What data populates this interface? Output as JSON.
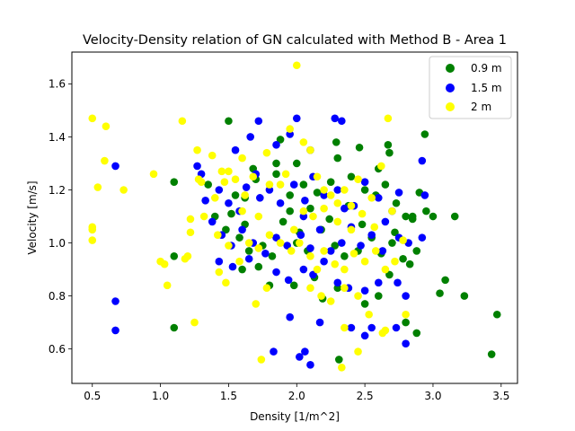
{
  "chart_data": {
    "type": "scatter",
    "title": "Velocity-Density relation of GN calculated with Method B - Area 1",
    "xlabel": "Density [1/m^2]",
    "ylabel": "Velocity [m/s]",
    "xlim": [
      0.35,
      3.62
    ],
    "ylim": [
      0.47,
      1.72
    ],
    "xticks": [
      "0.5",
      "1.0",
      "1.5",
      "2.0",
      "2.5",
      "3.0",
      "3.5"
    ],
    "yticks": [
      "0.6",
      "0.8",
      "1.0",
      "1.2",
      "1.4",
      "1.6"
    ],
    "grid": false,
    "legend_position": "top-right",
    "series": [
      {
        "name": "0.9 m",
        "color": "#008000",
        "points": [
          [
            1.5,
            1.46
          ],
          [
            1.88,
            1.39
          ],
          [
            2.29,
            1.38
          ],
          [
            2.67,
            1.37
          ],
          [
            2.94,
            1.41
          ],
          [
            2.68,
            1.34
          ],
          [
            1.1,
            1.23
          ],
          [
            1.35,
            1.22
          ],
          [
            1.55,
            1.18
          ],
          [
            1.62,
            1.17
          ],
          [
            1.7,
            1.24
          ],
          [
            1.85,
            1.26
          ],
          [
            1.95,
            1.18
          ],
          [
            2.05,
            1.22
          ],
          [
            2.15,
            1.19
          ],
          [
            2.25,
            1.23
          ],
          [
            2.4,
            1.25
          ],
          [
            2.5,
            1.2
          ],
          [
            2.58,
            1.18
          ],
          [
            2.65,
            1.22
          ],
          [
            2.73,
            1.15
          ],
          [
            2.8,
            1.1
          ],
          [
            2.85,
            1.09
          ],
          [
            2.9,
            1.19
          ],
          [
            2.95,
            1.12
          ],
          [
            3.0,
            1.1
          ],
          [
            3.16,
            1.1
          ],
          [
            1.4,
            1.1
          ],
          [
            1.48,
            1.05
          ],
          [
            1.58,
            1.02
          ],
          [
            1.65,
            0.97
          ],
          [
            1.75,
            0.99
          ],
          [
            1.82,
            0.95
          ],
          [
            1.9,
            1.08
          ],
          [
            2.0,
            1.0
          ],
          [
            2.08,
            0.97
          ],
          [
            2.18,
            1.05
          ],
          [
            2.28,
            0.99
          ],
          [
            2.35,
            0.95
          ],
          [
            2.45,
            0.97
          ],
          [
            2.55,
            1.02
          ],
          [
            2.62,
            0.96
          ],
          [
            2.7,
            1.0
          ],
          [
            2.78,
            0.94
          ],
          [
            2.83,
            0.92
          ],
          [
            2.88,
            0.97
          ],
          [
            1.1,
            0.95
          ],
          [
            1.6,
            0.9
          ],
          [
            1.72,
            0.91
          ],
          [
            1.8,
            0.84
          ],
          [
            1.98,
            0.84
          ],
          [
            2.13,
            0.87
          ],
          [
            2.19,
            0.79
          ],
          [
            2.3,
            0.83
          ],
          [
            2.5,
            0.77
          ],
          [
            2.6,
            0.8
          ],
          [
            2.68,
            0.88
          ],
          [
            2.8,
            0.7
          ],
          [
            2.88,
            0.66
          ],
          [
            3.05,
            0.81
          ],
          [
            3.09,
            0.86
          ],
          [
            3.23,
            0.8
          ],
          [
            3.47,
            0.73
          ],
          [
            3.43,
            0.58
          ],
          [
            1.1,
            0.68
          ],
          [
            2.31,
            0.56
          ],
          [
            1.85,
            1.3
          ],
          [
            2.3,
            1.32
          ],
          [
            2.46,
            1.36
          ],
          [
            2.6,
            1.28
          ],
          [
            1.68,
            1.28
          ],
          [
            2.0,
            1.3
          ],
          [
            2.1,
            1.13
          ],
          [
            2.38,
            1.14
          ],
          [
            2.72,
            1.04
          ],
          [
            1.52,
            1.11
          ],
          [
            1.95,
            1.12
          ],
          [
            2.24,
            1.09
          ],
          [
            2.48,
            1.07
          ],
          [
            2.85,
            1.1
          ],
          [
            1.62,
            1.07
          ],
          [
            2.02,
            1.04
          ]
        ]
      },
      {
        "name": "1.5 m",
        "color": "#0000ff",
        "points": [
          [
            0.67,
            1.29
          ],
          [
            1.27,
            1.29
          ],
          [
            1.72,
            1.46
          ],
          [
            1.66,
            1.4
          ],
          [
            1.85,
            1.37
          ],
          [
            1.95,
            1.41
          ],
          [
            2.0,
            1.47
          ],
          [
            2.28,
            1.47
          ],
          [
            2.33,
            1.46
          ],
          [
            2.1,
            1.35
          ],
          [
            2.92,
            1.31
          ],
          [
            1.55,
            1.35
          ],
          [
            1.33,
            1.16
          ],
          [
            1.43,
            1.2
          ],
          [
            1.5,
            1.15
          ],
          [
            1.58,
            1.12
          ],
          [
            1.63,
            1.21
          ],
          [
            1.73,
            1.17
          ],
          [
            1.8,
            1.2
          ],
          [
            1.88,
            1.15
          ],
          [
            1.98,
            1.22
          ],
          [
            2.06,
            1.16
          ],
          [
            2.12,
            1.25
          ],
          [
            2.2,
            1.18
          ],
          [
            2.3,
            1.2
          ],
          [
            2.42,
            1.14
          ],
          [
            2.5,
            1.23
          ],
          [
            2.6,
            1.17
          ],
          [
            2.7,
            1.12
          ],
          [
            2.75,
            1.19
          ],
          [
            2.94,
            1.18
          ],
          [
            1.38,
            1.08
          ],
          [
            1.45,
            1.03
          ],
          [
            1.52,
            0.99
          ],
          [
            1.6,
            1.05
          ],
          [
            1.68,
            1.0
          ],
          [
            1.77,
            0.96
          ],
          [
            1.85,
            1.02
          ],
          [
            1.93,
            0.99
          ],
          [
            2.03,
            1.03
          ],
          [
            2.1,
            0.98
          ],
          [
            2.17,
            1.05
          ],
          [
            2.25,
            0.97
          ],
          [
            2.33,
            1.0
          ],
          [
            2.4,
            1.06
          ],
          [
            2.47,
            0.99
          ],
          [
            2.55,
            1.03
          ],
          [
            2.63,
            0.97
          ],
          [
            2.75,
            1.02
          ],
          [
            2.82,
            1.0
          ],
          [
            2.92,
            1.02
          ],
          [
            1.43,
            0.93
          ],
          [
            1.53,
            0.91
          ],
          [
            1.65,
            0.94
          ],
          [
            1.85,
            0.89
          ],
          [
            1.94,
            0.86
          ],
          [
            2.05,
            0.9
          ],
          [
            2.12,
            0.88
          ],
          [
            2.2,
            0.93
          ],
          [
            2.3,
            0.85
          ],
          [
            2.38,
            0.83
          ],
          [
            2.5,
            0.82
          ],
          [
            2.6,
            0.85
          ],
          [
            2.74,
            0.85
          ],
          [
            2.8,
            0.8
          ],
          [
            1.95,
            0.72
          ],
          [
            2.17,
            0.7
          ],
          [
            2.4,
            0.68
          ],
          [
            2.5,
            0.65
          ],
          [
            2.55,
            0.68
          ],
          [
            2.73,
            0.68
          ],
          [
            2.8,
            0.62
          ],
          [
            2.02,
            0.57
          ],
          [
            2.06,
            0.59
          ],
          [
            2.1,
            0.54
          ],
          [
            1.83,
            0.59
          ],
          [
            0.67,
            0.78
          ],
          [
            0.67,
            0.67
          ],
          [
            1.3,
            1.26
          ],
          [
            1.7,
            1.26
          ],
          [
            2.05,
            1.1
          ],
          [
            2.35,
            1.13
          ],
          [
            2.65,
            1.08
          ]
        ]
      },
      {
        "name": "2 m",
        "color": "#ffff00",
        "points": [
          [
            0.5,
            1.47
          ],
          [
            0.6,
            1.44
          ],
          [
            0.59,
            1.31
          ],
          [
            0.54,
            1.21
          ],
          [
            0.73,
            1.2
          ],
          [
            0.5,
            1.06
          ],
          [
            0.5,
            1.05
          ],
          [
            0.5,
            1.01
          ],
          [
            0.95,
            1.26
          ],
          [
            1.0,
            0.93
          ],
          [
            1.03,
            0.92
          ],
          [
            1.05,
            0.84
          ],
          [
            1.16,
            1.46
          ],
          [
            1.18,
            0.94
          ],
          [
            1.2,
            0.95
          ],
          [
            1.25,
            0.7
          ],
          [
            1.27,
            1.35
          ],
          [
            1.28,
            1.24
          ],
          [
            1.3,
            1.23
          ],
          [
            1.32,
            1.1
          ],
          [
            1.22,
            1.09
          ],
          [
            1.22,
            1.04
          ],
          [
            1.38,
            1.33
          ],
          [
            1.4,
            1.17
          ],
          [
            1.45,
            1.27
          ],
          [
            1.47,
            1.23
          ],
          [
            1.5,
            1.27
          ],
          [
            1.55,
            1.24
          ],
          [
            1.6,
            1.32
          ],
          [
            1.62,
            1.18
          ],
          [
            1.68,
            1.25
          ],
          [
            1.72,
            1.1
          ],
          [
            1.78,
            1.34
          ],
          [
            1.8,
            1.22
          ],
          [
            1.88,
            1.22
          ],
          [
            1.92,
            1.26
          ],
          [
            1.95,
            1.43
          ],
          [
            2.0,
            1.67
          ],
          [
            2.05,
            1.38
          ],
          [
            2.1,
            1.35
          ],
          [
            2.15,
            1.25
          ],
          [
            2.2,
            1.2
          ],
          [
            2.25,
            1.18
          ],
          [
            2.3,
            1.15
          ],
          [
            2.35,
            1.2
          ],
          [
            2.4,
            1.14
          ],
          [
            2.45,
            1.24
          ],
          [
            2.55,
            1.17
          ],
          [
            2.62,
            1.29
          ],
          [
            2.67,
            1.47
          ],
          [
            2.7,
            1.12
          ],
          [
            2.78,
            1.01
          ],
          [
            1.42,
            1.03
          ],
          [
            1.5,
            0.99
          ],
          [
            1.58,
            0.93
          ],
          [
            1.65,
            1.0
          ],
          [
            1.72,
            0.98
          ],
          [
            1.8,
            1.03
          ],
          [
            1.88,
            1.0
          ],
          [
            1.96,
            0.97
          ],
          [
            2.02,
            1.0
          ],
          [
            2.1,
            0.95
          ],
          [
            2.15,
            0.9
          ],
          [
            2.2,
            0.97
          ],
          [
            2.28,
            0.92
          ],
          [
            2.35,
            0.9
          ],
          [
            2.42,
            0.96
          ],
          [
            2.5,
            0.93
          ],
          [
            2.58,
            0.97
          ],
          [
            2.65,
            0.9
          ],
          [
            2.72,
            0.93
          ],
          [
            1.43,
            0.89
          ],
          [
            1.48,
            0.85
          ],
          [
            1.7,
            0.77
          ],
          [
            1.78,
            0.83
          ],
          [
            2.1,
            0.83
          ],
          [
            2.18,
            0.8
          ],
          [
            2.25,
            0.78
          ],
          [
            2.35,
            0.83
          ],
          [
            2.45,
            0.8
          ],
          [
            2.53,
            0.73
          ],
          [
            2.65,
            0.67
          ],
          [
            2.63,
            0.66
          ],
          [
            2.8,
            0.73
          ],
          [
            2.35,
            0.68
          ],
          [
            2.45,
            0.59
          ],
          [
            2.33,
            0.53
          ],
          [
            1.74,
            0.56
          ],
          [
            2.12,
            1.1
          ],
          [
            2.3,
            1.08
          ],
          [
            2.48,
            1.11
          ],
          [
            2.2,
            1.13
          ],
          [
            2.4,
            1.05
          ],
          [
            1.98,
            1.05
          ],
          [
            2.57,
            1.06
          ],
          [
            1.6,
            1.12
          ],
          [
            2.05,
            1.12
          ]
        ]
      }
    ]
  }
}
